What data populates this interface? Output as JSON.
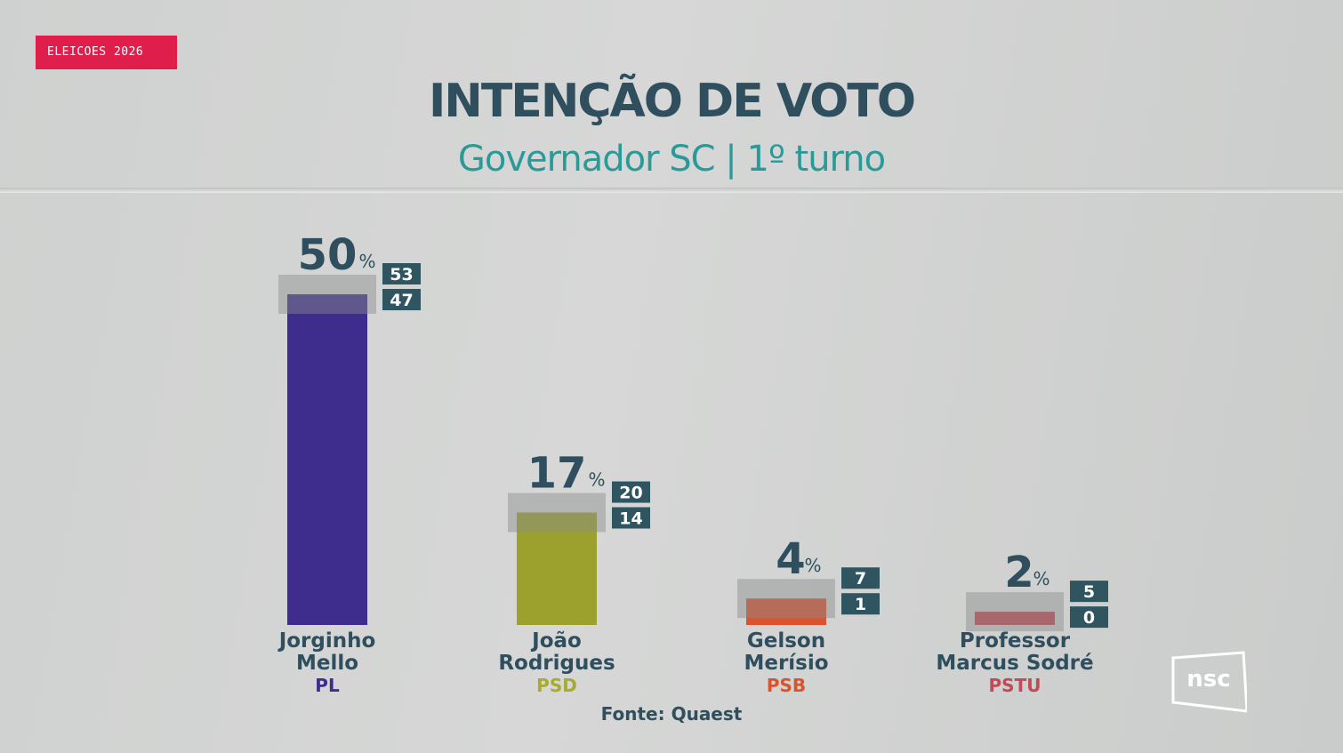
{
  "badge": {
    "label": "ELEICOES 2026",
    "color": "#e01e4b"
  },
  "header": {
    "title": "INTENÇÃO DE VOTO",
    "subtitle": "Governador SC | 1º turno"
  },
  "source": "Fonte: Quaest",
  "logo": {
    "text": "nsc"
  },
  "chart_data": {
    "type": "bar",
    "title": "INTENÇÃO DE VOTO",
    "subtitle": "Governador SC | 1º turno",
    "ylim": [
      0,
      55
    ],
    "grid": false,
    "unit": "%",
    "categories": [
      "Jorginho Mello",
      "João Rodrigues",
      "Gelson Merísio",
      "Professor Marcus Sodré"
    ],
    "candidates": [
      {
        "first": "Jorginho",
        "last": "Mello",
        "party": "PL",
        "value": "50",
        "upper": "53",
        "lower": "47",
        "color": "#3f2d8d",
        "party_color": "#3f2d8d"
      },
      {
        "first": "João",
        "last": "Rodrigues",
        "party": "PSD",
        "value": "17",
        "upper": "20",
        "lower": "14",
        "color": "#9ba12c",
        "party_color": "#a7ab2f"
      },
      {
        "first": "Gelson",
        "last": "Merísio",
        "party": "PSB",
        "value": "4",
        "upper": "7",
        "lower": "1",
        "color": "#d9532f",
        "party_color": "#d9532f"
      },
      {
        "first": "Professor",
        "last": "Marcus Sodré",
        "party": "PSTU",
        "value": "2",
        "upper": "5",
        "lower": "0",
        "color": "#c04a55",
        "party_color": "#c04a55"
      }
    ],
    "values": [
      50,
      17,
      4,
      2
    ],
    "margin_upper": [
      53,
      20,
      7,
      5
    ],
    "margin_lower": [
      47,
      14,
      1,
      0
    ]
  }
}
